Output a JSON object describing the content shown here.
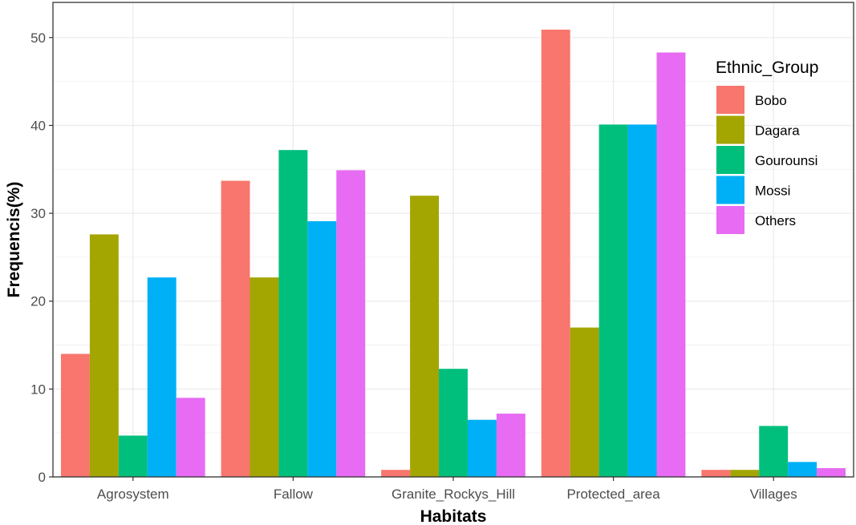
{
  "chart_data": {
    "type": "bar",
    "xlabel": "Habitats",
    "ylabel": "Frequencis(%)",
    "ylim": [
      0,
      54
    ],
    "yticks": [
      "0",
      "10",
      "20",
      "30",
      "40",
      "50"
    ],
    "grid": true,
    "categories": [
      "Agrosystem",
      "Fallow",
      "Granite_Rockys_Hill",
      "Protected_area",
      "Villages"
    ],
    "legend": {
      "title": "Ethnic_Group",
      "position": "right"
    },
    "series": [
      {
        "name": "Bobo",
        "color": "#F8766D",
        "values": [
          14.0,
          33.7,
          0.8,
          50.9,
          0.8
        ]
      },
      {
        "name": "Dagara",
        "color": "#A3A500",
        "values": [
          27.6,
          22.7,
          32.0,
          17.0,
          0.8
        ]
      },
      {
        "name": "Gourounsi",
        "color": "#00BF7D",
        "values": [
          4.7,
          37.2,
          12.3,
          40.1,
          5.8
        ]
      },
      {
        "name": "Mossi",
        "color": "#00B0F6",
        "values": [
          22.7,
          29.1,
          6.5,
          40.1,
          1.7
        ]
      },
      {
        "name": "Others",
        "color": "#E76BF3",
        "values": [
          9.0,
          34.9,
          7.2,
          48.3,
          1.0
        ]
      }
    ]
  }
}
